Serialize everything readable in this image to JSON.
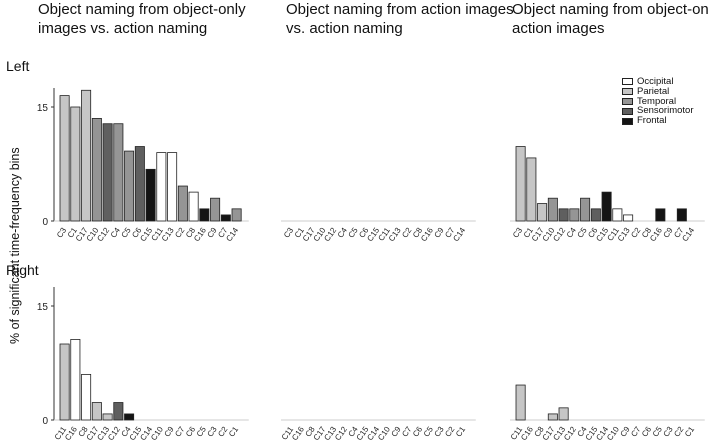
{
  "titles": [
    "Object naming from object-only images vs. action naming",
    "Object naming from action images vs. action naming",
    "Object naming from object-only vs. action images"
  ],
  "y_axis_label": "% of significant time-frequency bins",
  "hemispheres": [
    "Left",
    "Right"
  ],
  "legend": [
    {
      "label": "Occipital",
      "color": "#ffffff"
    },
    {
      "label": "Parietal",
      "color": "#c6c6c6"
    },
    {
      "label": "Temporal",
      "color": "#959595"
    },
    {
      "label": "Sensorimotor",
      "color": "#5f5f5f"
    },
    {
      "label": "Frontal",
      "color": "#141414"
    }
  ],
  "chart_data": [
    {
      "type": "bar",
      "hemisphere": "Left",
      "title": "Object naming from object-only images vs. action naming",
      "yticks": [
        0,
        15
      ],
      "ylim": [
        0,
        17.5
      ],
      "categories": [
        "C3",
        "C1",
        "C17",
        "C10",
        "C12",
        "C4",
        "C5",
        "C6",
        "C15",
        "C11",
        "C13",
        "C2",
        "C8",
        "C16",
        "C9",
        "C7",
        "C14"
      ],
      "regions": [
        "Parietal",
        "Parietal",
        "Parietal",
        "Temporal",
        "Sensorimotor",
        "Temporal",
        "Temporal",
        "Sensorimotor",
        "Frontal",
        "Occipital",
        "Occipital",
        "Temporal",
        "Occipital",
        "Frontal",
        "Temporal",
        "Frontal",
        "Temporal"
      ],
      "values": [
        16.5,
        15.0,
        17.2,
        13.5,
        12.8,
        12.8,
        9.2,
        9.8,
        6.8,
        9.0,
        9.0,
        4.6,
        3.8,
        1.6,
        3.0,
        0.8,
        1.6
      ]
    },
    {
      "type": "bar",
      "hemisphere": "Left",
      "title": "Object naming from action images vs. action naming",
      "yticks": [
        0,
        15
      ],
      "ylim": [
        0,
        17.5
      ],
      "categories": [
        "C3",
        "C1",
        "C17",
        "C10",
        "C12",
        "C4",
        "C5",
        "C6",
        "C15",
        "C11",
        "C13",
        "C2",
        "C8",
        "C16",
        "C9",
        "C7",
        "C14"
      ],
      "regions": [
        "Parietal",
        "Parietal",
        "Parietal",
        "Temporal",
        "Sensorimotor",
        "Temporal",
        "Temporal",
        "Sensorimotor",
        "Frontal",
        "Occipital",
        "Occipital",
        "Temporal",
        "Occipital",
        "Frontal",
        "Temporal",
        "Frontal",
        "Temporal"
      ],
      "values": [
        0,
        0,
        0,
        0,
        0,
        0,
        0,
        0,
        0,
        0,
        0,
        0,
        0,
        0,
        0,
        0,
        0
      ]
    },
    {
      "type": "bar",
      "hemisphere": "Left",
      "title": "Object naming from object-only vs. action images",
      "yticks": [
        0,
        15
      ],
      "ylim": [
        0,
        17.5
      ],
      "categories": [
        "C3",
        "C1",
        "C17",
        "C10",
        "C12",
        "C4",
        "C5",
        "C6",
        "C15",
        "C11",
        "C13",
        "C2",
        "C8",
        "C16",
        "C9",
        "C7",
        "C14"
      ],
      "regions": [
        "Parietal",
        "Parietal",
        "Parietal",
        "Temporal",
        "Sensorimotor",
        "Temporal",
        "Temporal",
        "Sensorimotor",
        "Frontal",
        "Occipital",
        "Occipital",
        "Temporal",
        "Occipital",
        "Frontal",
        "Temporal",
        "Frontal",
        "Temporal"
      ],
      "values": [
        9.8,
        8.3,
        2.3,
        3.0,
        1.6,
        1.6,
        3.0,
        1.6,
        3.8,
        1.6,
        0.8,
        0,
        0,
        1.6,
        0,
        1.6,
        0
      ]
    },
    {
      "type": "bar",
      "hemisphere": "Right",
      "title": "Object naming from object-only images vs. action naming",
      "yticks": [
        0,
        15
      ],
      "ylim": [
        0,
        17.5
      ],
      "categories": [
        "C11",
        "C16",
        "C8",
        "C17",
        "C13",
        "C12",
        "C4",
        "C15",
        "C14",
        "C10",
        "C9",
        "C7",
        "C6",
        "C5",
        "C3",
        "C2",
        "C1"
      ],
      "regions": [
        "Parietal",
        "Occipital",
        "Occipital",
        "Parietal",
        "Parietal",
        "Sensorimotor",
        "Frontal",
        "Temporal",
        "Temporal",
        "Temporal",
        "Temporal",
        "Temporal",
        "Sensorimotor",
        "Temporal",
        "Parietal",
        "Temporal",
        "Parietal"
      ],
      "values": [
        10.0,
        10.6,
        6.0,
        2.3,
        0.8,
        2.3,
        0.8,
        0,
        0,
        0,
        0,
        0,
        0,
        0,
        0,
        0,
        0
      ]
    },
    {
      "type": "bar",
      "hemisphere": "Right",
      "title": "Object naming from action images vs. action naming",
      "yticks": [
        0,
        15
      ],
      "ylim": [
        0,
        17.5
      ],
      "categories": [
        "C11",
        "C16",
        "C8",
        "C17",
        "C13",
        "C12",
        "C4",
        "C15",
        "C14",
        "C10",
        "C9",
        "C7",
        "C6",
        "C5",
        "C3",
        "C2",
        "C1"
      ],
      "regions": [
        "Parietal",
        "Occipital",
        "Occipital",
        "Parietal",
        "Parietal",
        "Sensorimotor",
        "Frontal",
        "Temporal",
        "Temporal",
        "Temporal",
        "Temporal",
        "Temporal",
        "Sensorimotor",
        "Temporal",
        "Parietal",
        "Temporal",
        "Parietal"
      ],
      "values": [
        0,
        0,
        0,
        0,
        0,
        0,
        0,
        0,
        0,
        0,
        0,
        0,
        0,
        0,
        0,
        0,
        0
      ]
    },
    {
      "type": "bar",
      "hemisphere": "Right",
      "title": "Object naming from object-only vs. action images",
      "yticks": [
        0,
        15
      ],
      "ylim": [
        0,
        17.5
      ],
      "categories": [
        "C11",
        "C16",
        "C8",
        "C17",
        "C13",
        "C12",
        "C4",
        "C15",
        "C14",
        "C10",
        "C9",
        "C7",
        "C6",
        "C5",
        "C3",
        "C2",
        "C1"
      ],
      "regions": [
        "Parietal",
        "Occipital",
        "Occipital",
        "Parietal",
        "Parietal",
        "Sensorimotor",
        "Frontal",
        "Temporal",
        "Temporal",
        "Temporal",
        "Temporal",
        "Temporal",
        "Sensorimotor",
        "Temporal",
        "Parietal",
        "Temporal",
        "Parietal"
      ],
      "values": [
        4.6,
        0,
        0,
        0.8,
        1.6,
        0,
        0,
        0,
        0,
        0,
        0,
        0,
        0,
        0,
        0,
        0,
        0
      ]
    }
  ]
}
